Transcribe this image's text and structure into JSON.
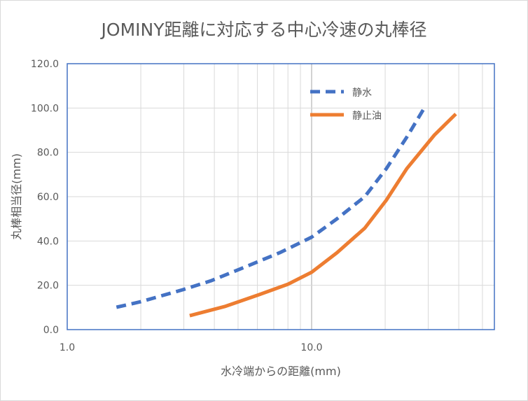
{
  "chart_data": {
    "type": "line",
    "title": "JOMINY距離に対応する中心冷速の丸棒径",
    "xlabel": "水冷端からの距離(mm)",
    "ylabel": "丸棒相当径(mm)",
    "xscale": "log",
    "xlim": [
      1,
      56
    ],
    "ylim": [
      0,
      120
    ],
    "xticks": [
      "1.0",
      "10.0"
    ],
    "xtick_values": [
      1,
      10
    ],
    "yticks": [
      "0.0",
      "20.0",
      "40.0",
      "60.0",
      "80.0",
      "100.0",
      "120.0"
    ],
    "ytick_values": [
      0,
      20,
      40,
      60,
      80,
      100,
      120
    ],
    "grid": true,
    "legend_position": "top-right",
    "series": [
      {
        "name": "静水",
        "color": "#4472c4",
        "dash": true,
        "x": [
          1.59,
          2.0,
          2.97,
          3.87,
          5.38,
          7.4,
          10,
          12.7,
          16.5,
          20.2,
          24.5,
          28.9
        ],
        "y": [
          10.1,
          12.6,
          18,
          22,
          28.4,
          34.7,
          41.7,
          50,
          60,
          72.6,
          86.8,
          100
        ]
      },
      {
        "name": "静止油",
        "color": "#ed7d31",
        "dash": false,
        "x": [
          3.17,
          4.4,
          6.1,
          8.0,
          10,
          12.7,
          16.5,
          20.2,
          24.5,
          31.8,
          38.9
        ],
        "y": [
          6.3,
          10.4,
          15.8,
          20.5,
          25.9,
          34.7,
          45.8,
          58.4,
          72.6,
          87.8,
          97.3
        ]
      }
    ]
  }
}
